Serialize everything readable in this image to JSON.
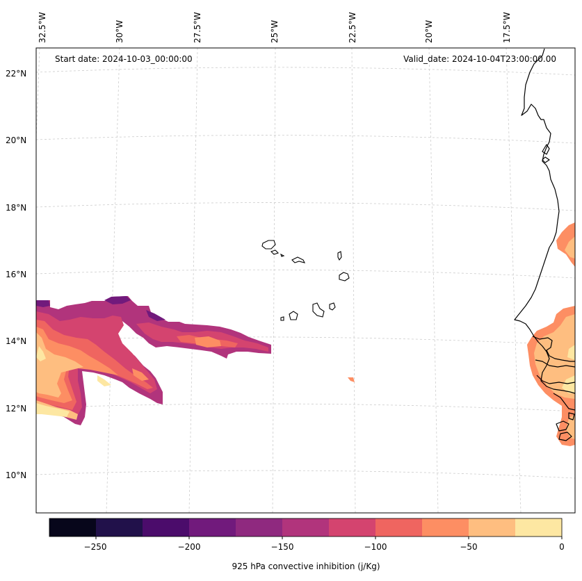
{
  "annotations": {
    "start_date": "Start date: 2024-10-03_00:00:00",
    "valid_date": "Valid_date: 2024-10-04T23:00:00.00"
  },
  "longitude_labels": [
    "32.5°W",
    "30°W",
    "27.5°W",
    "25°W",
    "22.5°W",
    "20°W",
    "17.5°W"
  ],
  "latitude_labels": [
    "22°N",
    "20°N",
    "18°N",
    "16°N",
    "14°N",
    "12°N",
    "10°N"
  ],
  "colorbar": {
    "label": "925 hPa convective inhibition (j/Kg)",
    "tick_labels": [
      "−250",
      "−200",
      "−150",
      "−100",
      "−50",
      "0"
    ],
    "levels": [
      -275,
      -250,
      -225,
      -200,
      -175,
      -150,
      -125,
      -100,
      -75,
      -50,
      -25,
      0
    ],
    "colors": [
      "#07061b",
      "#21114a",
      "#4b0c6b",
      "#711a7c",
      "#8f297f",
      "#b1347c",
      "#d4446f",
      "#ef6560",
      "#fd8e63",
      "#febe80",
      "#fde7a2"
    ]
  },
  "colors": {
    "coastline": "#000000",
    "gridline": "#cccccc",
    "frame": "#000000"
  }
}
